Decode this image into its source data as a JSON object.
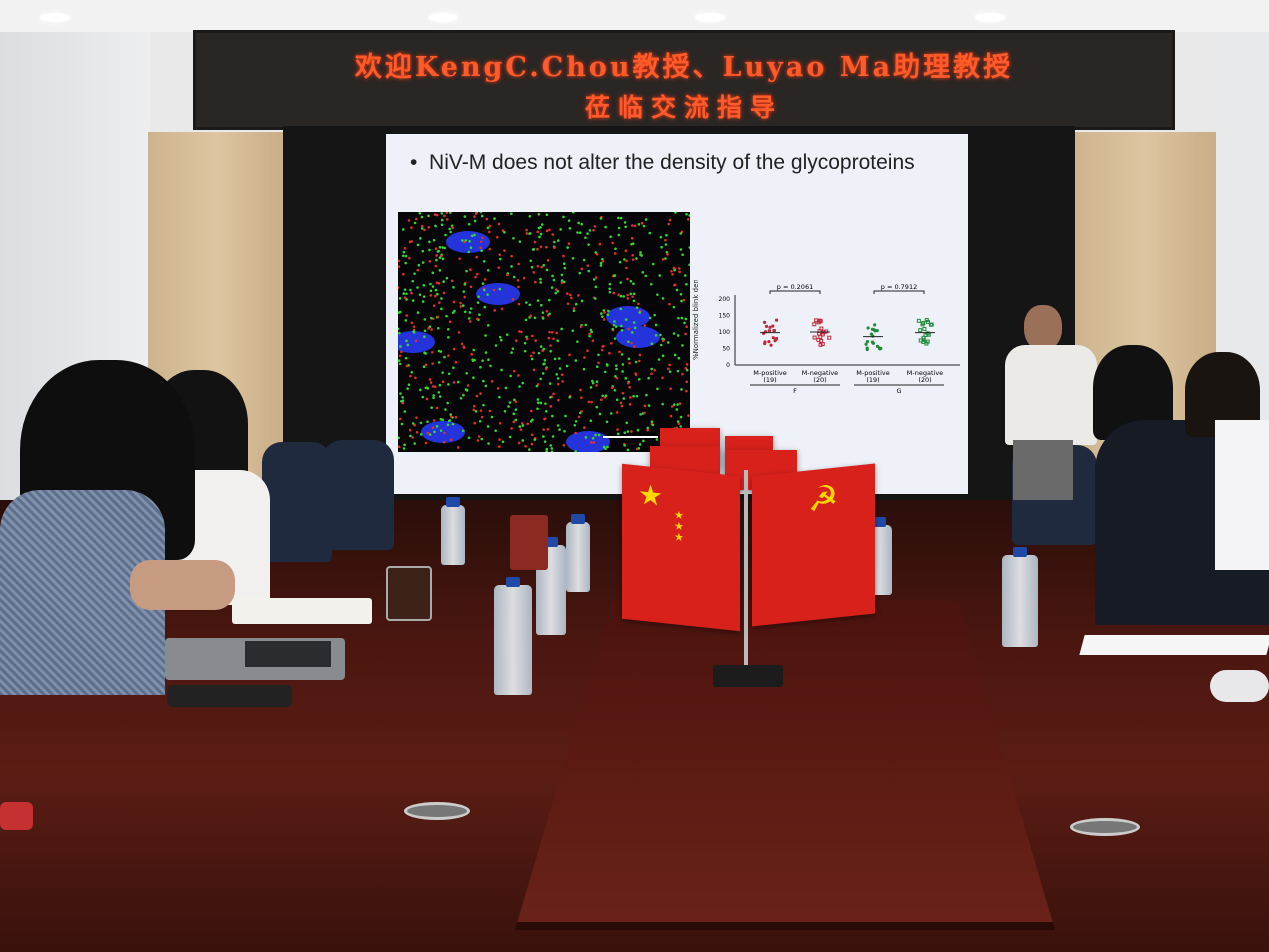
{
  "banner": {
    "line1": "欢迎KengC.Chou教授、Luyao Ma助理教授",
    "line2": "莅临交流指导"
  },
  "slide": {
    "bullet": "NiV-M does not alter the density of the glycoproteins",
    "chart": {
      "ylabel": "%Normalized blink density (nm⁻²)",
      "yticks": [
        "0",
        "50",
        "100",
        "150",
        "200"
      ],
      "groups": [
        {
          "label": "M-positive",
          "n": "(19)",
          "color": "#c0283a",
          "median": 98
        },
        {
          "label": "M-negative",
          "n": "(20)",
          "color": "#c0283a",
          "median": 100
        },
        {
          "label": "M-positive",
          "n": "(19)",
          "color": "#1f8a3a",
          "median": 86
        },
        {
          "label": "M-negative",
          "n": "(20)",
          "color": "#1f8a3a",
          "median": 98
        }
      ],
      "categories": [
        "F",
        "G"
      ],
      "pvalues": [
        "p = 0.2061",
        "p = 0.7912"
      ]
    }
  },
  "colors": {
    "led": "#ff5a2a",
    "flag": "#d8211b",
    "table": "#4a1610"
  }
}
